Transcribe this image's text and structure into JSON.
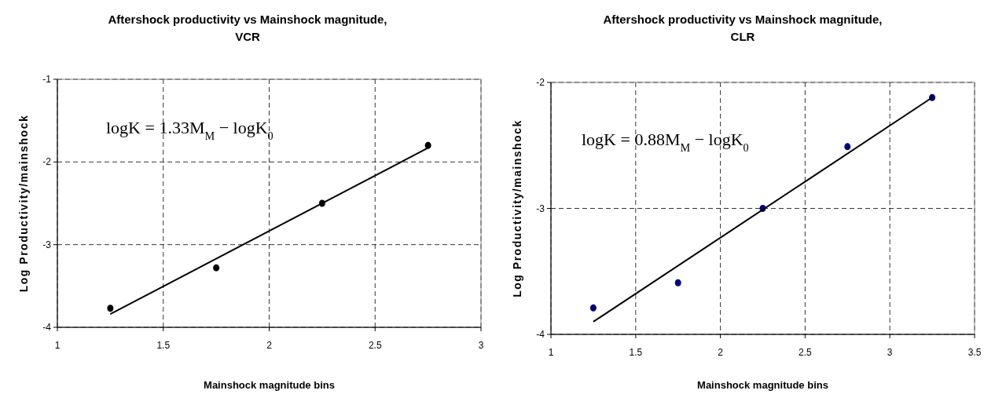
{
  "chart_data": [
    {
      "type": "scatter",
      "title": "Aftershock productivity vs Mainshock magnitude,\nVCR",
      "xlabel": "Mainshock magnitude bins",
      "ylabel": "Log Productivity/mainshock",
      "annotations": [
        "logK = 1.33M$_{M}$ − logK$_{0}$"
      ],
      "xlim": [
        1,
        3
      ],
      "xticks": [
        1,
        1.5,
        2,
        2.5,
        3
      ],
      "ylim": [
        -4,
        -1
      ],
      "yticks": [
        -4,
        -3,
        -2,
        -1
      ],
      "grid": true,
      "series": [
        {
          "marker": "circle",
          "color": "#000000",
          "x": [
            1.25,
            1.75,
            2.25,
            2.75
          ],
          "values": [
            -3.77,
            -3.28,
            -2.5,
            -1.8
          ]
        },
        {
          "type": "line",
          "marker": "none",
          "color": "#000000",
          "x": [
            1.25,
            2.75
          ],
          "values": [
            -3.84,
            -1.83
          ]
        }
      ]
    },
    {
      "type": "scatter",
      "title": "Aftershock productivity vs Mainshock magnitude,\nCLR",
      "xlabel": "Mainshock magnitude bins",
      "ylabel": "Log Productivity/mainshock",
      "annotations": [
        "logK = 0.88M$_{M}$ − logK$_{0}$"
      ],
      "xlim": [
        1,
        3.5
      ],
      "xticks": [
        1,
        1.5,
        2,
        2.5,
        3,
        3.5
      ],
      "ylim": [
        -4,
        -2
      ],
      "yticks": [
        -4,
        -3,
        -2
      ],
      "grid": true,
      "series": [
        {
          "marker": "circle",
          "color": "#000080",
          "x": [
            1.25,
            1.75,
            2.25,
            2.75,
            3.25
          ],
          "values": [
            -3.79,
            -3.59,
            -3.0,
            -2.51,
            -2.12
          ]
        },
        {
          "type": "line",
          "marker": "none",
          "color": "#000000",
          "x": [
            1.25,
            3.25
          ],
          "values": [
            -3.9,
            -2.12
          ]
        }
      ]
    }
  ]
}
